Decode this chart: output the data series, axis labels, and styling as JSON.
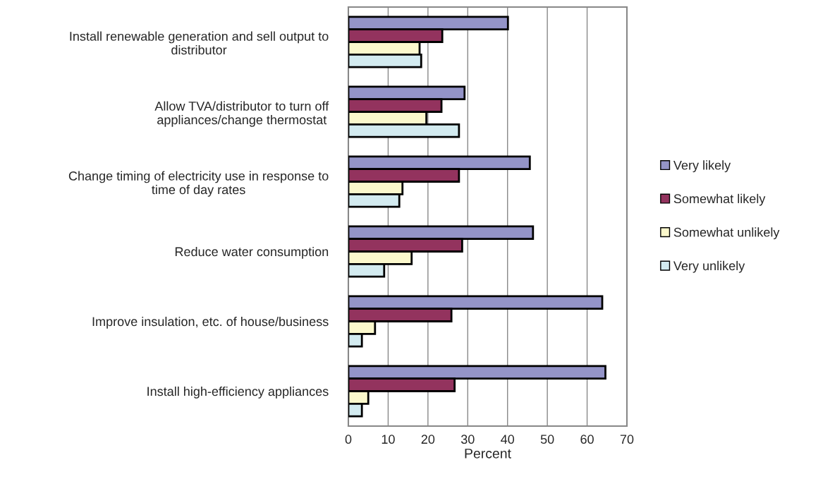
{
  "chart_data": {
    "type": "bar",
    "orientation": "horizontal",
    "xlabel": "Percent",
    "categories": [
      "Install renewable generation and sell output to\ndistributor",
      "Allow TVA/distributor to turn off\nappliances/change thermostat",
      "Change timing of electricity use in response to\ntime of day rates",
      "Reduce water consumption",
      "Improve insulation, etc. of house/business",
      "Install high-efficiency appliances"
    ],
    "series": [
      {
        "name": "Very likely",
        "color": "#9494c8",
        "values": [
          40.1,
          29.2,
          45.6,
          46.4,
          63.8,
          64.6
        ]
      },
      {
        "name": "Somewhat likely",
        "color": "#93335e",
        "values": [
          23.6,
          23.4,
          27.8,
          28.6,
          25.9,
          26.7
        ]
      },
      {
        "name": "Somewhat unlikely",
        "color": "#fbf8cc",
        "values": [
          17.9,
          19.6,
          13.6,
          15.9,
          6.7,
          5.0
        ]
      },
      {
        "name": "Very unlikely",
        "color": "#d3ebf0",
        "values": [
          18.3,
          27.8,
          12.8,
          9.0,
          3.4,
          3.4
        ]
      }
    ],
    "xlim": [
      0,
      70
    ],
    "xticks": [
      0,
      10,
      20,
      30,
      40,
      50,
      60,
      70
    ],
    "grid": "x",
    "legend": "right"
  }
}
